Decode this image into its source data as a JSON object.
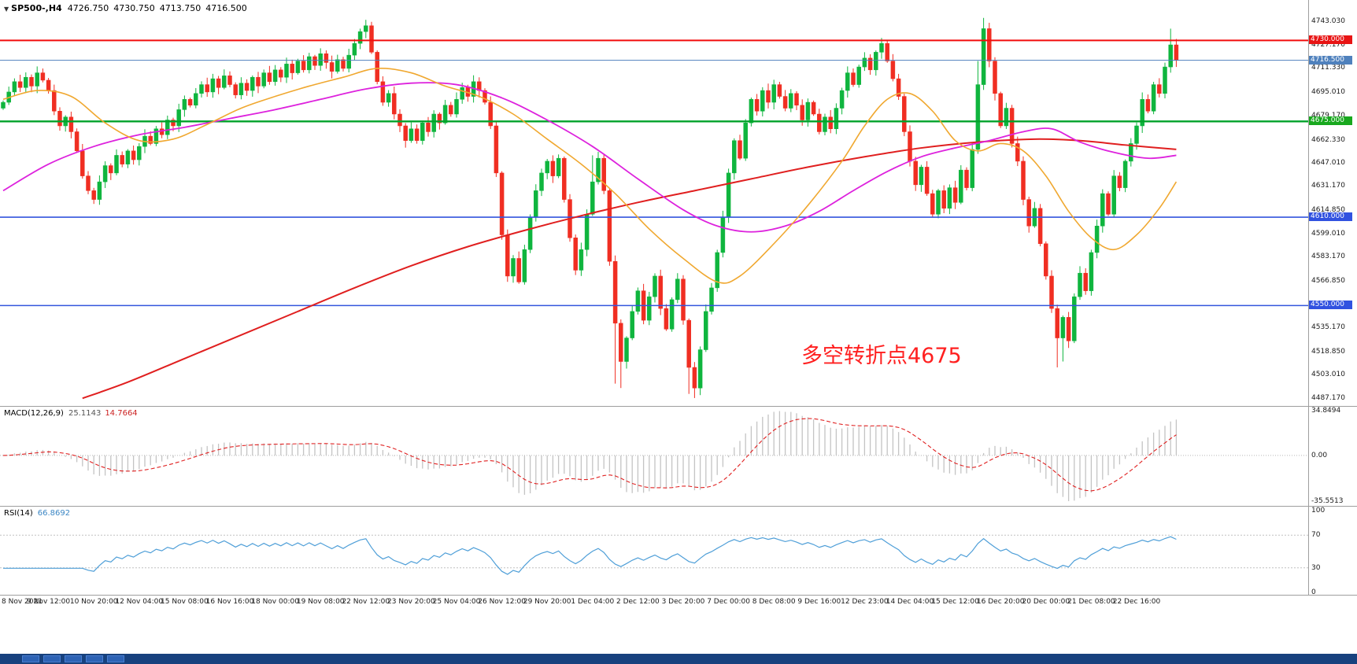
{
  "header": {
    "dropdown_icon": "▼",
    "symbol": "SP500-,H4",
    "open": "4726.750",
    "high": "4730.750",
    "low": "4713.750",
    "close": "4716.500"
  },
  "annotation": {
    "text": "多空转折点4675",
    "color": "#ff2020"
  },
  "chart_data": {
    "type": "candlestick+indicators",
    "price": {
      "type": "candlestick",
      "symbol": "SP500-",
      "timeframe": "H4",
      "last_ohlc": {
        "open": 4726.75,
        "high": 4730.75,
        "low": 4713.75,
        "close": 4716.5
      },
      "ylim": [
        4487.17,
        4743.03
      ],
      "up_color": "#0fb53e",
      "down_color": "#f02e22",
      "closes": [
        4688,
        4695,
        4702,
        4698,
        4705,
        4699,
        4708,
        4703,
        4696,
        4682,
        4672,
        4678,
        4668,
        4655,
        4638,
        4628,
        4622,
        4634,
        4645,
        4640,
        4652,
        4646,
        4655,
        4649,
        4658,
        4665,
        4660,
        4670,
        4666,
        4676,
        4672,
        4683,
        4690,
        4686,
        4694,
        4700,
        4695,
        4704,
        4698,
        4706,
        4700,
        4693,
        4701,
        4696,
        4705,
        4699,
        4708,
        4702,
        4710,
        4705,
        4714,
        4708,
        4716,
        4710,
        4719,
        4713,
        4721,
        4715,
        4709,
        4717,
        4711,
        4720,
        4728,
        4736,
        4740,
        4722,
        4702,
        4688,
        4694,
        4680,
        4672,
        4662,
        4670,
        4662,
        4674,
        4668,
        4680,
        4674,
        4686,
        4680,
        4690,
        4698,
        4692,
        4702,
        4696,
        4688,
        4672,
        4640,
        4598,
        4570,
        4582,
        4566,
        4588,
        4610,
        4628,
        4640,
        4648,
        4638,
        4650,
        4622,
        4596,
        4574,
        4588,
        4612,
        4634,
        4650,
        4628,
        4580,
        4538,
        4512,
        4528,
        4546,
        4560,
        4540,
        4556,
        4570,
        4548,
        4534,
        4554,
        4568,
        4540,
        4508,
        4494,
        4520,
        4546,
        4562,
        4586,
        4610,
        4640,
        4662,
        4650,
        4674,
        4690,
        4682,
        4696,
        4688,
        4700,
        4692,
        4684,
        4694,
        4686,
        4676,
        4688,
        4680,
        4668,
        4678,
        4670,
        4684,
        4696,
        4708,
        4700,
        4712,
        4718,
        4710,
        4722,
        4728,
        4716,
        4704,
        4692,
        4668,
        4648,
        4632,
        4644,
        4626,
        4612,
        4628,
        4616,
        4630,
        4620,
        4642,
        4630,
        4656,
        4700,
        4738,
        4716,
        4694,
        4672,
        4684,
        4660,
        4648,
        4622,
        4604,
        4616,
        4592,
        4570,
        4548,
        4528,
        4542,
        4526,
        4556,
        4572,
        4560,
        4586,
        4604,
        4626,
        4612,
        4638,
        4630,
        4648,
        4660,
        4672,
        4690,
        4682,
        4700,
        4694,
        4712,
        4727,
        4716.5
      ],
      "spikes": [
        {
          "i": 63,
          "high": 4738
        },
        {
          "i": 64,
          "high": 4743
        },
        {
          "i": 104,
          "high": 4652
        },
        {
          "i": 108,
          "low": 4497
        },
        {
          "i": 109,
          "low": 4494
        },
        {
          "i": 121,
          "low": 4490
        },
        {
          "i": 122,
          "low": 4487.2
        },
        {
          "i": 172,
          "high": 4716
        },
        {
          "i": 173,
          "high": 4745.3
        },
        {
          "i": 186,
          "low": 4508
        },
        {
          "i": 187,
          "low": 4512
        },
        {
          "i": 206,
          "high": 4738
        },
        {
          "i": 207,
          "high": 4730.75,
          "low": 4713.75
        }
      ],
      "hlines": [
        {
          "value": 4730.0,
          "color": "#f20c0c",
          "width": 2
        },
        {
          "value": 4675.0,
          "color": "#00a22a",
          "width": 2.4
        },
        {
          "value": 4610.0,
          "color": "#3355dd",
          "width": 1.6
        },
        {
          "value": 4550.0,
          "color": "#3355dd",
          "width": 1.6
        },
        {
          "value": 4716.5,
          "color": "#4f81bd",
          "width": 1
        }
      ],
      "ma": [
        {
          "name": "ma-slow-red",
          "color": "#e01f1f",
          "width": 2,
          "points": [
            [
              14,
              4487
            ],
            [
              22,
              4498
            ],
            [
              32,
              4514
            ],
            [
              42,
              4530
            ],
            [
              52,
              4546
            ],
            [
              62,
              4562
            ],
            [
              72,
              4577
            ],
            [
              82,
              4590
            ],
            [
              92,
              4601
            ],
            [
              102,
              4611
            ],
            [
              112,
              4620
            ],
            [
              122,
              4628
            ],
            [
              132,
              4636
            ],
            [
              142,
              4644
            ],
            [
              152,
              4651
            ],
            [
              162,
              4657
            ],
            [
              172,
              4661
            ],
            [
              182,
              4663
            ],
            [
              190,
              4662
            ],
            [
              198,
              4659
            ],
            [
              207,
              4656
            ]
          ]
        },
        {
          "name": "ma-mid-magenta",
          "color": "#dd22dd",
          "width": 1.8,
          "points": [
            [
              0,
              4628
            ],
            [
              8,
              4646
            ],
            [
              16,
              4658
            ],
            [
              24,
              4666
            ],
            [
              32,
              4671
            ],
            [
              40,
              4677
            ],
            [
              48,
              4683
            ],
            [
              56,
              4690
            ],
            [
              64,
              4697
            ],
            [
              72,
              4701
            ],
            [
              80,
              4700
            ],
            [
              88,
              4691
            ],
            [
              96,
              4676
            ],
            [
              104,
              4658
            ],
            [
              112,
              4636
            ],
            [
              120,
              4615
            ],
            [
              126,
              4604
            ],
            [
              132,
              4600
            ],
            [
              138,
              4604
            ],
            [
              144,
              4614
            ],
            [
              150,
              4628
            ],
            [
              156,
              4641
            ],
            [
              162,
              4651
            ],
            [
              168,
              4657
            ],
            [
              174,
              4662
            ],
            [
              180,
              4668
            ],
            [
              185,
              4670
            ],
            [
              190,
              4661
            ],
            [
              196,
              4654
            ],
            [
              202,
              4650
            ],
            [
              207,
              4652
            ]
          ]
        },
        {
          "name": "ma-fast-orange",
          "color": "#f0a830",
          "width": 1.6,
          "points": [
            [
              0,
              4690
            ],
            [
              6,
              4696
            ],
            [
              12,
              4692
            ],
            [
              18,
              4674
            ],
            [
              24,
              4662
            ],
            [
              30,
              4663
            ],
            [
              36,
              4673
            ],
            [
              42,
              4684
            ],
            [
              48,
              4692
            ],
            [
              54,
              4699
            ],
            [
              60,
              4705
            ],
            [
              66,
              4711
            ],
            [
              72,
              4708
            ],
            [
              78,
              4699
            ],
            [
              84,
              4692
            ],
            [
              90,
              4680
            ],
            [
              96,
              4663
            ],
            [
              102,
              4646
            ],
            [
              108,
              4626
            ],
            [
              114,
              4602
            ],
            [
              120,
              4582
            ],
            [
              126,
              4566
            ],
            [
              130,
              4570
            ],
            [
              136,
              4592
            ],
            [
              142,
              4618
            ],
            [
              148,
              4648
            ],
            [
              152,
              4672
            ],
            [
              156,
              4690
            ],
            [
              160,
              4694
            ],
            [
              164,
              4682
            ],
            [
              168,
              4662
            ],
            [
              172,
              4655
            ],
            [
              176,
              4660
            ],
            [
              180,
              4655
            ],
            [
              184,
              4638
            ],
            [
              188,
              4614
            ],
            [
              192,
              4596
            ],
            [
              196,
              4588
            ],
            [
              200,
              4598
            ],
            [
              204,
              4616
            ],
            [
              207,
              4634
            ]
          ]
        }
      ],
      "axis": {
        "ticks": [
          4743.03,
          4727.17,
          4711.33,
          4695.01,
          4679.17,
          4662.33,
          4647.01,
          4631.17,
          4614.85,
          4599.01,
          4583.17,
          4566.85,
          4535.17,
          4518.85,
          4503.01,
          4487.17
        ],
        "badges": [
          {
            "value": 4730.0,
            "label": "4730.000",
            "color": "#e81414"
          },
          {
            "value": 4716.5,
            "label": "4716.500",
            "color": "#4f81bd"
          },
          {
            "value": 4675.0,
            "label": "4675.000",
            "color": "#18a81e"
          },
          {
            "value": 4610.0,
            "label": "4610.000",
            "color": "#3152e0"
          },
          {
            "value": 4550.0,
            "label": "4550.000",
            "color": "#3152e0"
          }
        ]
      },
      "x_label_interval": 8,
      "x_labels": [
        "8 Nov 2021",
        "9 Nov 12:00",
        "10 Nov 20:00",
        "12 Nov 04:00",
        "15 Nov 08:00",
        "16 Nov 16:00",
        "18 Nov 00:00",
        "19 Nov 08:00",
        "22 Nov 12:00",
        "23 Nov 20:00",
        "25 Nov 04:00",
        "26 Nov 12:00",
        "29 Nov 20:00",
        "1 Dec 04:00",
        "2 Dec 12:00",
        "3 Dec 20:00",
        "7 Dec 00:00",
        "8 Dec 08:00",
        "9 Dec 16:00",
        "12 Dec 23:00",
        "14 Dec 04:00",
        "15 Dec 12:00",
        "16 Dec 20:00",
        "20 Dec 00:00",
        "21 Dec 08:00",
        "22 Dec 16:00"
      ]
    },
    "macd": {
      "type": "histogram+line",
      "title": "MACD(12,26,9)",
      "value_main": "25.1143",
      "value_signal": "14.7664",
      "params": [
        12,
        26,
        9
      ],
      "hist_color": "#c4c4c4",
      "signal_color": "#e02020",
      "axis": [
        {
          "label": "34.8494",
          "value": 34.8494
        },
        {
          "label": "0.00",
          "value": 0
        },
        {
          "label": "-35.5513",
          "value": -35.5513
        }
      ]
    },
    "rsi": {
      "type": "line",
      "title": "RSI(14)",
      "value": "66.8692",
      "period": 14,
      "line_color": "#4f9fd8",
      "levels": [
        70,
        30
      ],
      "axis": [
        {
          "label": "100",
          "value": 100
        },
        {
          "label": "70",
          "value": 70
        },
        {
          "label": "30",
          "value": 30
        },
        {
          "label": "0",
          "value": 0
        }
      ]
    }
  }
}
